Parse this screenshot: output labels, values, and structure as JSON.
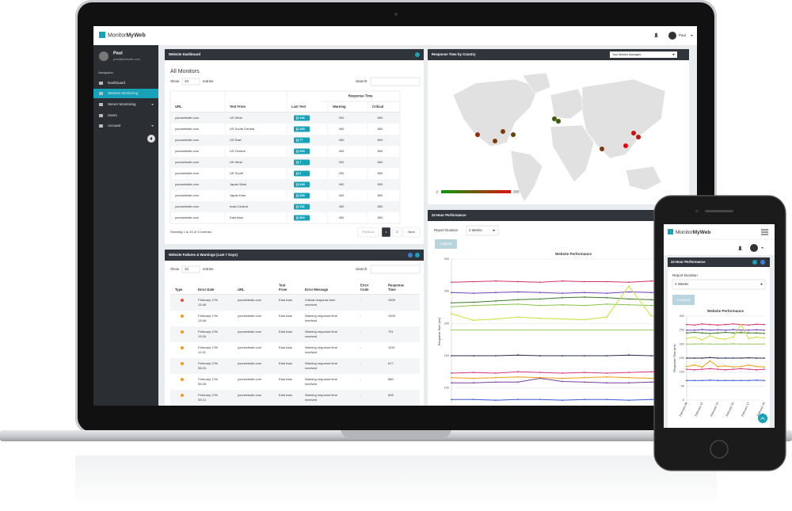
{
  "header": {
    "brand_left": "Monitor",
    "brand_right": "MyWeb",
    "user": "Paul"
  },
  "sidebar": {
    "name": "Paul",
    "email": "paul@website.com",
    "section": "Navigation",
    "items": [
      "Dashboard",
      "Website Monitoring",
      "Server Monitoring",
      "Users",
      "Account"
    ]
  },
  "dashboard_panel": {
    "title": "Website Dashboard",
    "heading": "All Monitors",
    "show": "Show",
    "page_size": "10",
    "entries": "entries",
    "search": "Search:",
    "group_header": "Response Time",
    "columns": [
      "URL",
      "Test From",
      "Last Test",
      "Warning",
      "Critical"
    ],
    "rows": [
      [
        "yourwebsite.com",
        "US West",
        146,
        200,
        800
      ],
      [
        "yourwebsite.com",
        "US South Central",
        105,
        400,
        800
      ],
      [
        "yourwebsite.com",
        "US East",
        77,
        400,
        800
      ],
      [
        "yourwebsite.com",
        "US Central",
        108,
        400,
        800
      ],
      [
        "yourwebsite.com",
        "UK West",
        7,
        200,
        800
      ],
      [
        "yourwebsite.com",
        "UK South",
        2,
        200,
        800
      ],
      [
        "yourwebsite.com",
        "Japan West",
        248,
        400,
        800
      ],
      [
        "yourwebsite.com",
        "Japan East",
        228,
        400,
        800
      ],
      [
        "yourwebsite.com",
        "India Central",
        118,
        400,
        800
      ],
      [
        "yourwebsite.com",
        "East Asia",
        300,
        400,
        800
      ]
    ],
    "info": "Showing 1 to 10 of 13 entries",
    "pagination": [
      "Previous",
      "1",
      "2",
      "Next"
    ]
  },
  "failures_panel": {
    "title": "Website Failures & Warnings (Last 7 Days)",
    "show": "Show",
    "page_size": "10",
    "entries": "entries",
    "search": "Search:",
    "columns": [
      [
        "Type"
      ],
      [
        "Error Date"
      ],
      [
        "URL"
      ],
      [
        "Test",
        "From"
      ],
      [
        "Error Message"
      ],
      [
        "Error",
        "Code"
      ],
      [
        "Response",
        "Time"
      ]
    ],
    "rows": [
      {
        "icon_color": "#e74c3c",
        "date": [
          "February 17th",
          "13:48"
        ],
        "url": "yourwebsite.com",
        "from": "East Asia",
        "message": [
          "Critical response time",
          "received"
        ],
        "code": "-",
        "time": 1009
      },
      {
        "icon_color": "#f39c12",
        "date": [
          "February 17th",
          "13:48"
        ],
        "url": "yourwebsite.com",
        "from": "East Asia",
        "message": [
          "Warning response time",
          "received"
        ],
        "code": "-",
        "time": 1009
      },
      {
        "icon_color": "#f39c12",
        "date": [
          "February 17th",
          "13:26"
        ],
        "url": "yourwebsite.com",
        "from": "East Asia",
        "message": [
          "Warning response time",
          "received"
        ],
        "code": "-",
        "time": 701
      },
      {
        "icon_color": "#f39c12",
        "date": [
          "February 17th",
          "12:41"
        ],
        "url": "yourwebsite.com",
        "from": "East Asia",
        "message": [
          "Warning response time",
          "received"
        ],
        "code": "-",
        "time": 1110
      },
      {
        "icon_color": "#f39c12",
        "date": [
          "February 17th",
          "08:23"
        ],
        "url": "yourwebsite.com",
        "from": "East Asia",
        "message": [
          "Warning response time",
          "received"
        ],
        "code": "-",
        "time": 617
      },
      {
        "icon_color": "#f39c12",
        "date": [
          "February 17th",
          "06:28"
        ],
        "url": "yourwebsite.com",
        "from": "East Asia",
        "message": [
          "Warning response time",
          "received"
        ],
        "code": "-",
        "time": 680
      },
      {
        "icon_color": "#f39c12",
        "date": [
          "February 17th",
          "05:14"
        ],
        "url": "yourwebsite.com",
        "from": "East Asia",
        "message": [
          "Warning response time",
          "received"
        ],
        "code": "-",
        "time": 696
      }
    ]
  },
  "map_panel": {
    "title": "Response Time by Country",
    "select": "Your Monitor Averages",
    "scale_min": 2,
    "scale_max": 300
  },
  "performance_panel": {
    "title": "24 Hour Performance",
    "duration_label": "Report Duration",
    "duration": "2 Weeks",
    "legend_button": "Legend"
  },
  "phone": {
    "brand_left": "Monitor",
    "brand_right": "MyWeb",
    "panel_title": "24 Hour Performance",
    "duration_label": "Report Duration",
    "duration": "2 Weeks",
    "legend_button": "Legend"
  },
  "chart_data": [
    {
      "type": "line",
      "title": "Website Performance",
      "y_label": "Response Time (ms)",
      "ylim": [
        75,
        300
      ],
      "yticks": [
        100,
        150,
        200,
        250,
        300
      ],
      "series": [
        {
          "color": "#d6336c",
          "values": [
            264,
            265,
            266,
            265,
            264,
            266,
            265,
            265,
            264,
            266,
            265,
            265
          ]
        },
        {
          "color": "#6f42c1",
          "values": [
            248,
            247,
            248,
            249,
            248,
            247,
            248,
            247,
            249,
            248,
            247,
            248
          ]
        },
        {
          "color": "#3d7a2a",
          "values": [
            232,
            233,
            235,
            237,
            238,
            240,
            241,
            240,
            238,
            237,
            236,
            235
          ]
        },
        {
          "color": "#8bc34a",
          "values": [
            226,
            228,
            229,
            230,
            228,
            229,
            228,
            230,
            229,
            228,
            229,
            228
          ]
        },
        {
          "color": "#cddc39",
          "values": [
            215,
            205,
            207,
            210,
            208,
            207,
            206,
            210,
            258,
            212,
            206,
            210
          ]
        },
        {
          "color": "#9ccc65",
          "values": [
            190,
            190,
            190,
            190,
            190,
            190,
            190,
            190,
            190,
            190,
            190,
            190
          ]
        },
        {
          "color": "#2c2c54",
          "values": [
            150,
            150,
            150,
            151,
            150,
            150,
            150,
            150,
            151,
            150,
            150,
            150
          ]
        },
        {
          "color": "#d63384",
          "values": [
            123,
            124,
            123,
            125,
            124,
            123,
            124,
            123,
            124,
            125,
            124,
            123
          ]
        },
        {
          "color": "#f39c12",
          "values": [
            116,
            115,
            116,
            117,
            116,
            115,
            116,
            117,
            116,
            115,
            116,
            116
          ]
        },
        {
          "color": "#7b3fa0",
          "values": [
            108,
            108,
            109,
            109,
            115,
            110,
            109,
            108,
            108,
            109,
            108,
            108
          ]
        },
        {
          "color": "#3b5bdb",
          "values": [
            82,
            82,
            81,
            82,
            82,
            81,
            82,
            82,
            81,
            82,
            82,
            82
          ]
        }
      ]
    },
    {
      "type": "line",
      "title": "Website Performance",
      "y_label": "Response Time (ms)",
      "categories": [
        "February 09",
        null,
        "February 11",
        null,
        "February 13",
        null,
        "February 15",
        null,
        "February 17",
        null,
        "February 19"
      ],
      "ylim": [
        0,
        300
      ],
      "yticks": [
        0,
        50,
        100,
        150,
        200,
        250,
        300
      ],
      "series": [
        {
          "color": "#d6336c",
          "values": [
            270,
            268,
            272,
            270,
            268,
            270,
            272,
            270,
            268,
            271,
            270
          ]
        },
        {
          "color": "#6f42c1",
          "values": [
            250,
            250,
            252,
            250,
            251,
            250,
            252,
            250,
            250,
            251,
            250
          ]
        },
        {
          "color": "#3d7a2a",
          "values": [
            240,
            242,
            240,
            238,
            240,
            242,
            240,
            241,
            240,
            240,
            238
          ]
        },
        {
          "color": "#cddc39",
          "values": [
            220,
            225,
            215,
            230,
            220,
            218,
            225,
            270,
            220,
            225,
            222
          ]
        },
        {
          "color": "#9ccc65",
          "values": [
            200,
            200,
            201,
            200,
            200,
            200,
            201,
            200,
            200,
            200,
            200
          ]
        },
        {
          "color": "#2c2c54",
          "values": [
            150,
            150,
            150,
            152,
            150,
            150,
            150,
            150,
            151,
            150,
            150
          ]
        },
        {
          "color": "#f39c12",
          "values": [
            120,
            125,
            118,
            140,
            120,
            122,
            118,
            120,
            125,
            120,
            118
          ]
        },
        {
          "color": "#d63384",
          "values": [
            110,
            108,
            110,
            112,
            110,
            108,
            110,
            112,
            110,
            108,
            110
          ]
        },
        {
          "color": "#3b5bdb",
          "values": [
            70,
            70,
            70,
            71,
            70,
            70,
            70,
            70,
            70,
            71,
            70
          ]
        }
      ]
    }
  ]
}
